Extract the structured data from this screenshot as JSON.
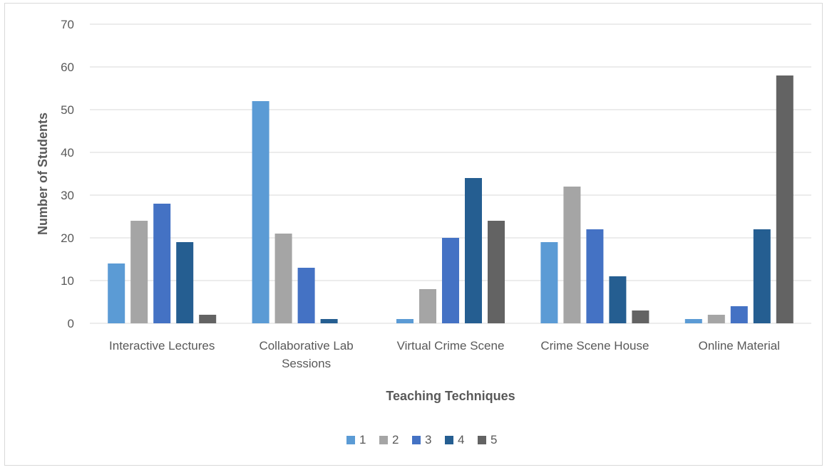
{
  "chart_data": {
    "type": "bar",
    "title": "",
    "xlabel": "Teaching Techniques",
    "ylabel": "Number of Students",
    "ylim": [
      0,
      70
    ],
    "yticks": [
      0,
      10,
      20,
      30,
      40,
      50,
      60,
      70
    ],
    "grid": true,
    "legend_position": "bottom",
    "categories": [
      [
        "Interactive Lectures"
      ],
      [
        "Collaborative Lab",
        "Sessions"
      ],
      [
        "Virtual Crime Scene"
      ],
      [
        "Crime Scene House"
      ],
      [
        "Online Material"
      ]
    ],
    "series": [
      {
        "name": "1",
        "color": "#5b9bd5",
        "values": [
          14,
          52,
          1,
          19,
          1
        ]
      },
      {
        "name": "2",
        "color": "#a5a5a5",
        "values": [
          24,
          21,
          8,
          32,
          2
        ]
      },
      {
        "name": "3",
        "color": "#4472c4",
        "values": [
          28,
          13,
          20,
          22,
          4
        ]
      },
      {
        "name": "4",
        "color": "#255e91",
        "values": [
          19,
          1,
          34,
          11,
          22
        ]
      },
      {
        "name": "5",
        "color": "#636363",
        "values": [
          2,
          0,
          24,
          3,
          58
        ]
      }
    ]
  }
}
